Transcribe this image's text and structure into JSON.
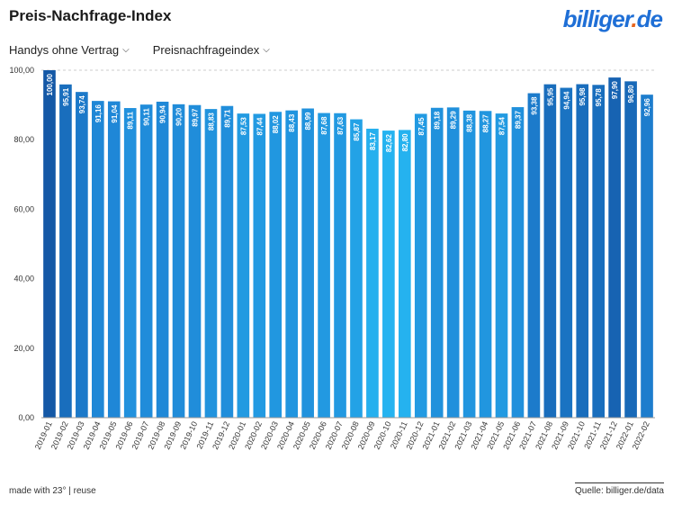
{
  "header": {
    "title": "Preis-Nachfrage-Index",
    "logo_main": "billiger",
    "logo_dot": ".",
    "logo_tld": "de"
  },
  "controls": {
    "category": "Handys ohne Vertrag",
    "metric": "Preisnachfrageindex"
  },
  "footer": {
    "left": "made with 23° | reuse",
    "right": "Quelle: billiger.de/data"
  },
  "colors": {
    "bar_dark": "#1458a6",
    "bar_mid": "#1f86d6",
    "bar_light": "#25b3f0",
    "grid": "#cccccc"
  },
  "chart_data": {
    "type": "bar",
    "title": "Preis-Nachfrage-Index",
    "xlabel": "",
    "ylabel": "",
    "ylim": [
      0,
      100
    ],
    "yticks": [
      "0,00",
      "20,00",
      "40,00",
      "60,00",
      "80,00",
      "100,00"
    ],
    "categories": [
      "2019-01",
      "2019-02",
      "2019-03",
      "2019-04",
      "2019-05",
      "2019-06",
      "2019-07",
      "2019-08",
      "2019-09",
      "2019-10",
      "2019-11",
      "2019-12",
      "2020-01",
      "2020-02",
      "2020-03",
      "2020-04",
      "2020-05",
      "2020-06",
      "2020-07",
      "2020-08",
      "2020-09",
      "2020-10",
      "2020-11",
      "2020-12",
      "2021-01",
      "2021-02",
      "2021-03",
      "2021-04",
      "2021-05",
      "2021-06",
      "2021-07",
      "2021-08",
      "2021-09",
      "2021-10",
      "2021-11",
      "2021-12",
      "2022-01",
      "2022-02"
    ],
    "values": [
      100.0,
      95.91,
      93.74,
      91.16,
      91.04,
      89.11,
      90.11,
      90.94,
      90.2,
      89.97,
      88.83,
      89.71,
      87.53,
      87.44,
      88.02,
      88.43,
      88.99,
      87.68,
      87.63,
      85.87,
      83.17,
      82.62,
      82.8,
      87.45,
      89.18,
      89.29,
      88.38,
      88.27,
      87.54,
      89.37,
      93.38,
      95.95,
      94.94,
      95.98,
      95.78,
      97.9,
      96.8,
      92.96
    ],
    "labels": [
      "100,00",
      "95,91",
      "93,74",
      "91,16",
      "91,04",
      "89,11",
      "90,11",
      "90,94",
      "90,20",
      "89,97",
      "88,83",
      "89,71",
      "87,53",
      "87,44",
      "88,02",
      "88,43",
      "88,99",
      "87,68",
      "87,63",
      "85,87",
      "83,17",
      "82,62",
      "82,80",
      "87,45",
      "89,18",
      "89,29",
      "88,38",
      "88,27",
      "87,54",
      "89,37",
      "93,38",
      "95,95",
      "94,94",
      "95,98",
      "95,78",
      "97,90",
      "96,80",
      "92,96"
    ]
  }
}
